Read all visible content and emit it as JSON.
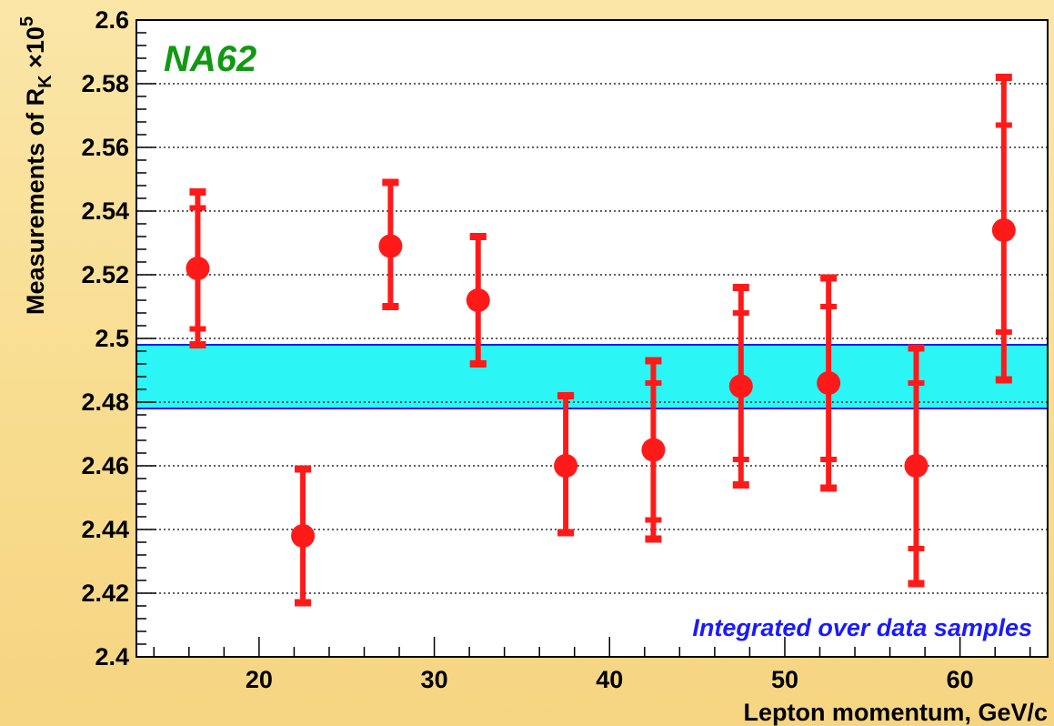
{
  "chart_data": {
    "type": "scatter",
    "experiment_label": "NA62",
    "annotation": "Integrated over data samples",
    "xlabel": "Lepton momentum, GeV/c",
    "ylabel": {
      "prefix": "Measurements of R",
      "sub": "K",
      "mid": " ×10",
      "sup": "5"
    },
    "xlim": [
      13,
      65
    ],
    "ylim": [
      2.4,
      2.6
    ],
    "x_ticks": [
      20,
      30,
      40,
      50,
      60
    ],
    "x_tick_labels": [
      "20",
      "30",
      "40",
      "50",
      "60"
    ],
    "y_ticks": [
      2.4,
      2.42,
      2.44,
      2.46,
      2.48,
      2.5,
      2.52,
      2.54,
      2.56,
      2.58,
      2.6
    ],
    "y_tick_labels": [
      "2.4",
      "2.42",
      "2.44",
      "2.46",
      "2.48",
      "2.5",
      "2.52",
      "2.54",
      "2.56",
      "2.58",
      "2.6"
    ],
    "grid": "horizontal-dotted",
    "band": {
      "low": 2.478,
      "high": 2.498
    },
    "points": [
      {
        "x": 16.5,
        "y": 2.522,
        "stat_low": 2.503,
        "stat_high": 2.541,
        "total_low": 2.498,
        "total_high": 2.546
      },
      {
        "x": 22.5,
        "y": 2.438,
        "stat_low": 2.417,
        "stat_high": 2.459,
        "total_low": 2.417,
        "total_high": 2.459
      },
      {
        "x": 27.5,
        "y": 2.529,
        "stat_low": 2.51,
        "stat_high": 2.549,
        "total_low": 2.51,
        "total_high": 2.549
      },
      {
        "x": 32.5,
        "y": 2.512,
        "stat_low": 2.492,
        "stat_high": 2.532,
        "total_low": 2.492,
        "total_high": 2.532
      },
      {
        "x": 37.5,
        "y": 2.46,
        "stat_low": 2.439,
        "stat_high": 2.482,
        "total_low": 2.439,
        "total_high": 2.482
      },
      {
        "x": 42.5,
        "y": 2.465,
        "stat_low": 2.443,
        "stat_high": 2.486,
        "total_low": 2.437,
        "total_high": 2.493
      },
      {
        "x": 47.5,
        "y": 2.485,
        "stat_low": 2.462,
        "stat_high": 2.508,
        "total_low": 2.454,
        "total_high": 2.516
      },
      {
        "x": 52.5,
        "y": 2.486,
        "stat_low": 2.462,
        "stat_high": 2.51,
        "total_low": 2.453,
        "total_high": 2.519
      },
      {
        "x": 57.5,
        "y": 2.46,
        "stat_low": 2.434,
        "stat_high": 2.486,
        "total_low": 2.423,
        "total_high": 2.497
      },
      {
        "x": 62.5,
        "y": 2.534,
        "stat_low": 2.502,
        "stat_high": 2.567,
        "total_low": 2.487,
        "total_high": 2.582
      }
    ],
    "colors": {
      "points": "#ff1a1a",
      "band_fill": "#2bf5f5",
      "band_edge": "#1a1aee",
      "experiment_label": "#119911",
      "annotation": "#1a1aff"
    }
  }
}
